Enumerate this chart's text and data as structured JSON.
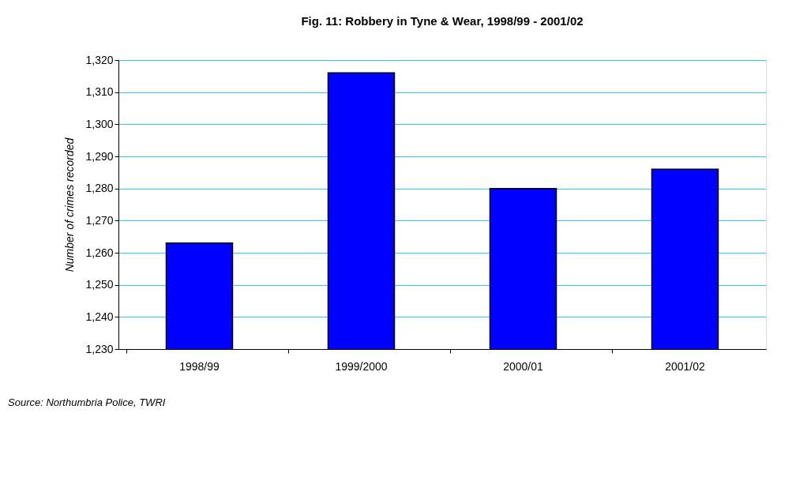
{
  "chart_data": {
    "type": "bar",
    "title": "Fig. 11:  Robbery in Tyne & Wear, 1998/99 - 2001/02",
    "ylabel": "Number of crimes recorded",
    "categories": [
      "1998/99",
      "1999/2000",
      "2000/01",
      "2001/02"
    ],
    "values": [
      1263,
      1316,
      1280,
      1286
    ],
    "color": "#0000ff",
    "ylim": [
      1230,
      1320
    ],
    "yticks": [
      {
        "value": 1230,
        "label": "1,230"
      },
      {
        "value": 1240,
        "label": "1,240"
      },
      {
        "value": 1250,
        "label": "1,250"
      },
      {
        "value": 1260,
        "label": "1,260"
      },
      {
        "value": 1270,
        "label": "1,270"
      },
      {
        "value": 1280,
        "label": "1,280"
      },
      {
        "value": 1290,
        "label": "1,290"
      },
      {
        "value": 1300,
        "label": "1,300"
      },
      {
        "value": 1310,
        "label": "1,310"
      },
      {
        "value": 1320,
        "label": "1,320"
      }
    ],
    "grid": "y",
    "annotations": [
      "Source: Northumbria Police, TWRI"
    ]
  }
}
